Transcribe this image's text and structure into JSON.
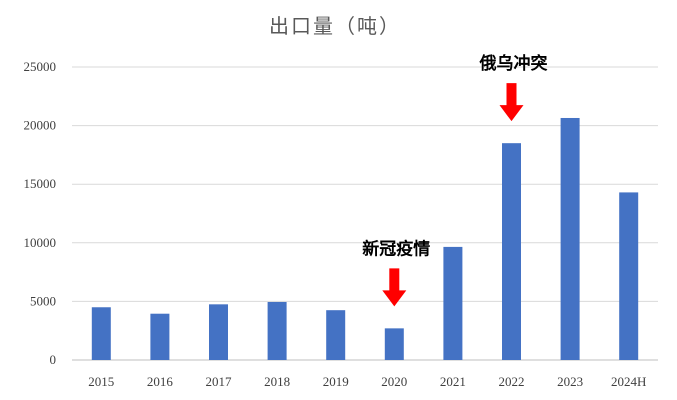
{
  "chart_data": {
    "type": "bar",
    "title": "出口量（吨）",
    "xlabel": "",
    "ylabel": "",
    "categories": [
      "2015",
      "2016",
      "2017",
      "2018",
      "2019",
      "2020",
      "2021",
      "2022",
      "2023",
      "2024H"
    ],
    "values": [
      4500,
      3950,
      4750,
      4950,
      4250,
      2700,
      9650,
      18500,
      20650,
      14300
    ],
    "ylim": [
      0,
      25000
    ],
    "yticks": [
      0,
      5000,
      10000,
      15000,
      20000,
      25000
    ],
    "grid": true,
    "legend": "none",
    "bar_color": "#4472c4",
    "annotations": [
      {
        "label": "新冠疫情",
        "category": "2020",
        "arrow_color": "#ff0000"
      },
      {
        "label": "俄乌冲突",
        "category": "2022",
        "arrow_color": "#ff0000"
      }
    ]
  }
}
